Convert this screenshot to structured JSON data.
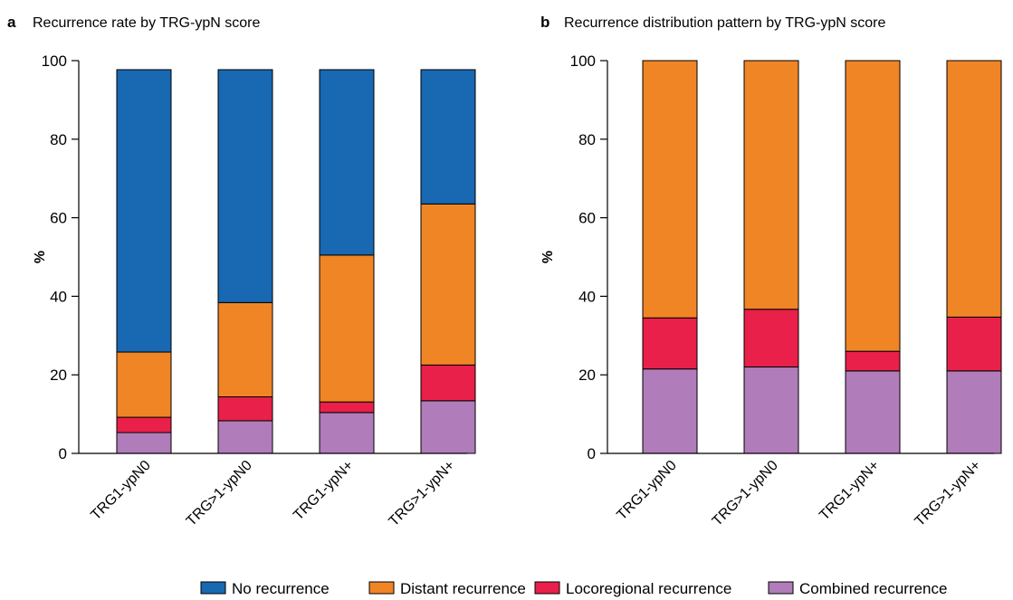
{
  "chart_data": [
    {
      "type": "bar",
      "stacked": true,
      "panel": "a",
      "title": "Recurrence rate by TRG-ypN score",
      "xlabel": "",
      "ylabel": "%",
      "ylim": [
        0,
        100
      ],
      "yticks": [
        "0",
        "20",
        "40",
        "60",
        "80",
        "100"
      ],
      "categories": [
        "TRG1-ypN0",
        "TRG>1-ypN0",
        "TRG1-ypN+",
        "TRG>1-ypN+"
      ],
      "series": [
        {
          "name": "Combined recurrence",
          "color": "#b07cba",
          "values": [
            5.3,
            8.3,
            10.4,
            13.4
          ]
        },
        {
          "name": "Locoregional recurrence",
          "color": "#e8204a",
          "values": [
            3.9,
            6.1,
            2.7,
            9.1
          ]
        },
        {
          "name": "Distant recurrence",
          "color": "#f08526",
          "values": [
            16.6,
            24.0,
            37.4,
            41.0
          ]
        },
        {
          "name": "No recurrence",
          "color": "#1868b2",
          "values": [
            71.9,
            59.3,
            47.2,
            34.2
          ]
        }
      ],
      "grid": false
    },
    {
      "type": "bar",
      "stacked": true,
      "panel": "b",
      "title": "Recurrence distribution pattern by TRG-ypN score",
      "xlabel": "",
      "ylabel": "%",
      "ylim": [
        0,
        100
      ],
      "yticks": [
        "0",
        "20",
        "40",
        "60",
        "80",
        "100"
      ],
      "categories": [
        "TRG1-ypN0",
        "TRG>1-ypN0",
        "TRG1-ypN+",
        "TRG>1-ypN+"
      ],
      "series": [
        {
          "name": "Combined recurrence",
          "color": "#b07cba",
          "values": [
            21.5,
            22.0,
            21.0,
            21.0
          ]
        },
        {
          "name": "Locoregional recurrence",
          "color": "#e8204a",
          "values": [
            13.0,
            14.7,
            5.0,
            13.7
          ]
        },
        {
          "name": "Distant recurrence",
          "color": "#f08526",
          "values": [
            65.5,
            63.3,
            74.0,
            65.3
          ]
        }
      ],
      "grid": false
    }
  ],
  "legend": {
    "placement": "bottom",
    "items": [
      {
        "label": "No recurrence",
        "color": "#1868b2"
      },
      {
        "label": "Distant recurrence",
        "color": "#f08526"
      },
      {
        "label": "Locoregional recurrence",
        "color": "#e8204a"
      },
      {
        "label": "Combined recurrence",
        "color": "#b07cba"
      }
    ]
  }
}
